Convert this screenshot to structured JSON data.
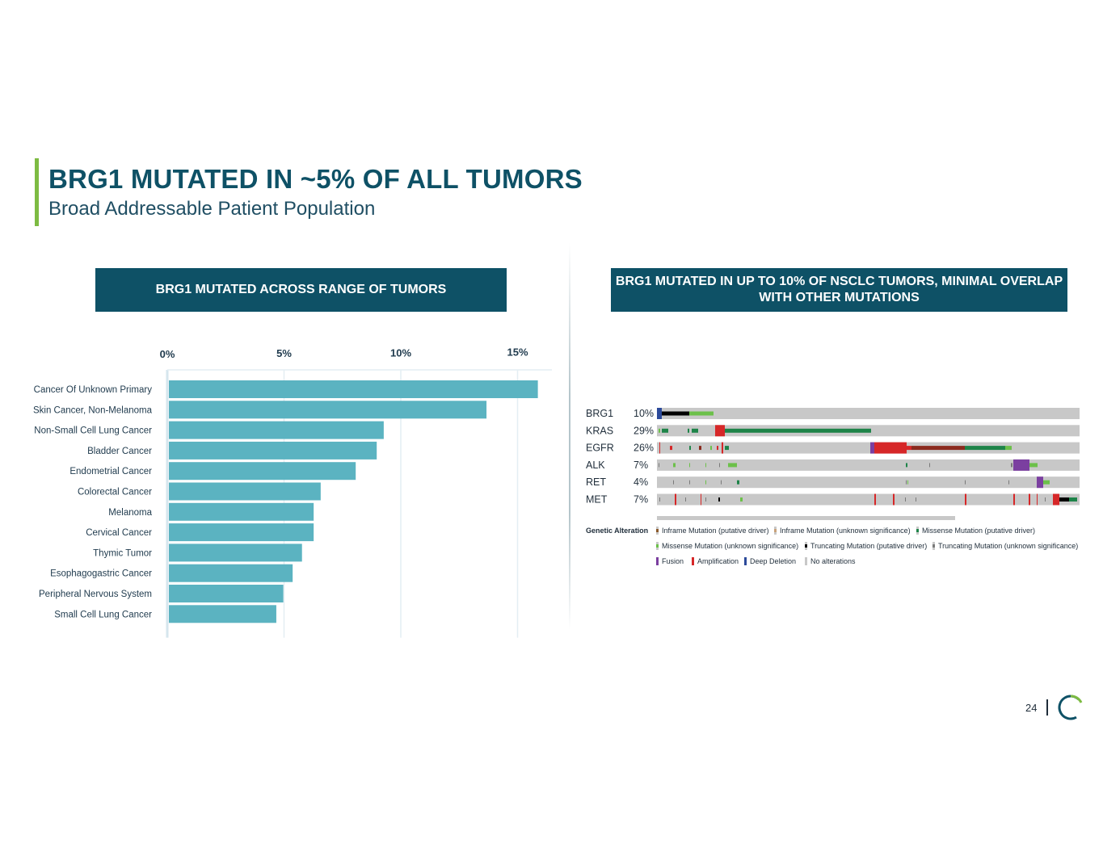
{
  "slide": {
    "title": "BRG1 MUTATED IN ~5% OF ALL TUMORS",
    "subtitle": "Broad Addressable Patient Population",
    "left_header": "BRG1 MUTATED ACROSS RANGE OF TUMORS",
    "right_header": "BRG1 MUTATED IN UP TO 10% OF NSCLC TUMORS, MINIMAL OVERLAP WITH OTHER MUTATIONS",
    "page_number": "24"
  },
  "colors": {
    "brand_teal": "#0e5166",
    "accent_green": "#7dbb42",
    "bar": "#5bb3c1"
  },
  "chart_data": [
    {
      "type": "bar",
      "orientation": "horizontal",
      "categories": [
        "Cancer Of Unknown Primary",
        "Skin Cancer, Non-Melanoma",
        "Non-Small Cell Lung Cancer",
        "Bladder Cancer",
        "Endometrial Cancer",
        "Colorectal Cancer",
        "Melanoma",
        "Cervical Cancer",
        "Thymic Tumor",
        "Esophagogastric Cancer",
        "Peripheral Nervous System",
        "Small Cell Lung Cancer"
      ],
      "values": [
        15.8,
        13.6,
        9.2,
        8.9,
        8.0,
        6.5,
        6.2,
        6.2,
        5.7,
        5.3,
        4.9,
        4.6
      ],
      "x_ticks": [
        "0%",
        "5%",
        "10%",
        "15%"
      ],
      "xlim": [
        0,
        16.5
      ],
      "tick_position": "top",
      "grid": true
    },
    {
      "type": "heatmap",
      "kind": "oncoprint",
      "genes": [
        "BRG1",
        "KRAS",
        "EGFR",
        "ALK",
        "RET",
        "MET"
      ],
      "frequencies": [
        "10%",
        "29%",
        "26%",
        "7%",
        "4%",
        "7%"
      ],
      "legend_title": "Genetic Alteration",
      "legend": [
        {
          "label": "Inframe Mutation (putative driver)",
          "color": "#8b5a2b"
        },
        {
          "label": "Inframe Mutation (unknown significance)",
          "color": "#c9a27a"
        },
        {
          "label": "Missense Mutation (putative driver)",
          "color": "#1e8449"
        },
        {
          "label": "Missense Mutation (unknown significance)",
          "color": "#6cc04a"
        },
        {
          "label": "Truncating Mutation (putative driver)",
          "color": "#000000"
        },
        {
          "label": "Truncating Mutation (unknown significance)",
          "color": "#7a7a7a"
        },
        {
          "label": "Fusion",
          "color": "#7b3fa0"
        },
        {
          "label": "Amplification",
          "color": "#d62728"
        },
        {
          "label": "Deep Deletion",
          "color": "#2c4a9a"
        },
        {
          "label": "No alterations",
          "color": "#c8c8c8"
        }
      ]
    }
  ]
}
